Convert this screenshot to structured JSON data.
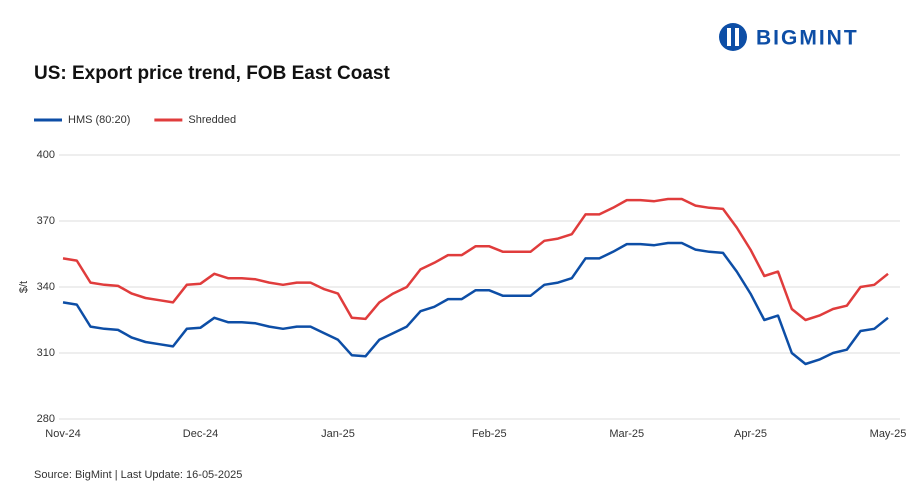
{
  "logo": "BIGMINT",
  "chart_data": {
    "type": "line",
    "title": "US: Export price trend, FOB East Coast",
    "y_label": "$/t",
    "source": "Source: BigMint | Last Update: 16-05-2025",
    "categories": [
      "Nov-24",
      null,
      null,
      null,
      null,
      null,
      null,
      null,
      null,
      null,
      "Dec-24",
      null,
      null,
      null,
      null,
      null,
      null,
      null,
      null,
      null,
      "Jan-25",
      null,
      null,
      null,
      null,
      null,
      null,
      null,
      null,
      null,
      null,
      "Feb-25",
      null,
      null,
      null,
      null,
      null,
      null,
      null,
      null,
      null,
      "Mar-25",
      null,
      null,
      null,
      null,
      null,
      null,
      null,
      null,
      "Apr-25",
      null,
      null,
      null,
      null,
      null,
      null,
      null,
      null,
      null,
      "May-25"
    ],
    "series": [
      {
        "name": "HMS (80:20)",
        "color": "#0d4ea6",
        "values": [
          333,
          332,
          322,
          321,
          320.5,
          317,
          315,
          314,
          313,
          321,
          321.5,
          326,
          324,
          324,
          323.5,
          322,
          321,
          322,
          322,
          319,
          316,
          309,
          308.5,
          316,
          319,
          322,
          329,
          331,
          334.5,
          334.5,
          338.5,
          338.5,
          336,
          336,
          336,
          341,
          342,
          344,
          353,
          353,
          356,
          359.5,
          359.5,
          359,
          360,
          360,
          357,
          356,
          355.5,
          347,
          337,
          325,
          327,
          310,
          305,
          307,
          310,
          311.5,
          320,
          321,
          326
        ]
      },
      {
        "name": "Shredded",
        "color": "#e03c3c",
        "values": [
          353,
          352,
          342,
          341,
          340.5,
          337,
          335,
          334,
          333,
          341,
          341.5,
          346,
          344,
          344,
          343.5,
          342,
          341,
          342,
          342,
          339,
          337,
          326,
          325.5,
          333,
          337,
          340,
          348,
          351,
          354.5,
          354.5,
          358.5,
          358.5,
          356,
          356,
          356,
          361,
          362,
          364,
          373,
          373,
          376,
          379.5,
          379.5,
          379,
          380,
          380,
          377,
          376,
          375.5,
          367,
          357,
          345,
          347,
          330,
          325,
          327,
          330,
          331.5,
          340,
          341,
          346
        ]
      }
    ],
    "ylim": [
      280,
      400
    ],
    "yticks": [
      280,
      310,
      340,
      370,
      400
    ],
    "grid": true,
    "legend": "top-left"
  }
}
